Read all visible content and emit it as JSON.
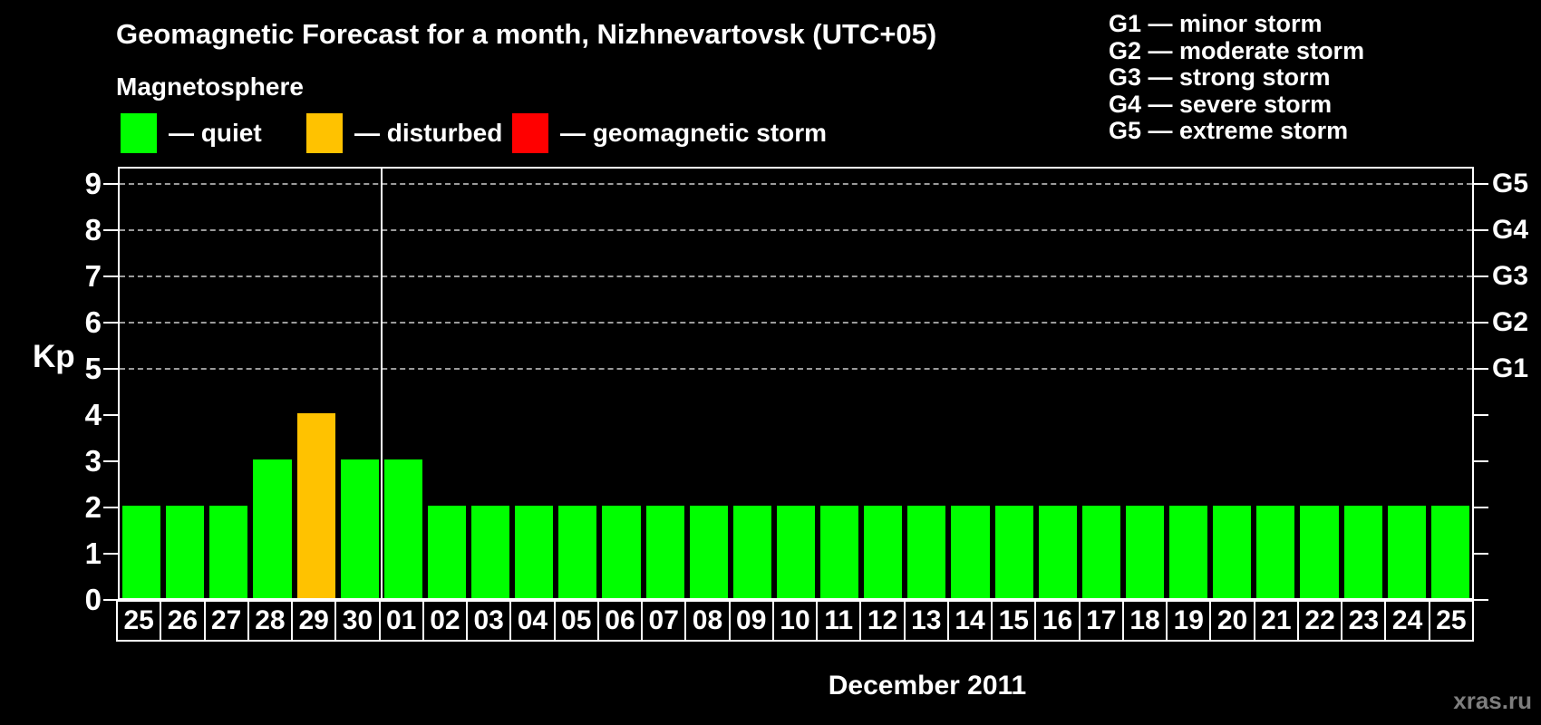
{
  "header": {
    "title": "Geomagnetic Forecast for a month, Nizhnevartovsk (UTC+05)",
    "subtitle": "Magnetosphere",
    "watermark": "xras.ru"
  },
  "legend": {
    "items": [
      {
        "status": "quiet",
        "label": "— quiet",
        "color": "#00ff00"
      },
      {
        "status": "disturbed",
        "label": "— disturbed",
        "color": "#ffc200"
      },
      {
        "status": "storm",
        "label": "— geomagnetic storm",
        "color": "#ff0000"
      }
    ]
  },
  "g_legend": {
    "items": [
      "G1 — minor storm",
      "G2 — moderate storm",
      "G3 — strong storm",
      "G4 — severe storm",
      "G5 — extreme storm"
    ]
  },
  "chart_data": {
    "type": "bar",
    "title": "Geomagnetic Forecast for a month, Nizhnevartovsk (UTC+05)",
    "xlabel": "December 2011",
    "ylabel": "Kp",
    "ylim": [
      0,
      9
    ],
    "yticks": [
      0,
      1,
      2,
      3,
      4,
      5,
      6,
      7,
      8,
      9
    ],
    "gridlines_at_kp": [
      5,
      6,
      7,
      8,
      9
    ],
    "grid": "horizontal dashed lines at storm levels only",
    "legend_position": "top-left",
    "right_axis_labels": [
      {
        "label": "G1",
        "kp": 5
      },
      {
        "label": "G2",
        "kp": 6
      },
      {
        "label": "G3",
        "kp": 7
      },
      {
        "label": "G4",
        "kp": 8
      },
      {
        "label": "G5",
        "kp": 9
      }
    ],
    "categories": [
      "25",
      "26",
      "27",
      "28",
      "29",
      "30",
      "01",
      "02",
      "03",
      "04",
      "05",
      "06",
      "07",
      "08",
      "09",
      "10",
      "11",
      "12",
      "13",
      "14",
      "15",
      "16",
      "17",
      "18",
      "19",
      "20",
      "21",
      "22",
      "23",
      "24",
      "25"
    ],
    "values": [
      2,
      2,
      2,
      3,
      4,
      3,
      3,
      2,
      2,
      2,
      2,
      2,
      2,
      2,
      2,
      2,
      2,
      2,
      2,
      2,
      2,
      2,
      2,
      2,
      2,
      2,
      2,
      2,
      2,
      2,
      2
    ],
    "statuses": [
      "quiet",
      "quiet",
      "quiet",
      "quiet",
      "disturbed",
      "quiet",
      "quiet",
      "quiet",
      "quiet",
      "quiet",
      "quiet",
      "quiet",
      "quiet",
      "quiet",
      "quiet",
      "quiet",
      "quiet",
      "quiet",
      "quiet",
      "quiet",
      "quiet",
      "quiet",
      "quiet",
      "quiet",
      "quiet",
      "quiet",
      "quiet",
      "quiet",
      "quiet",
      "quiet",
      "quiet"
    ],
    "colors": {
      "quiet": "#00ff00",
      "disturbed": "#ffc200",
      "storm": "#ff0000"
    },
    "month_separator_after_index": 5
  }
}
